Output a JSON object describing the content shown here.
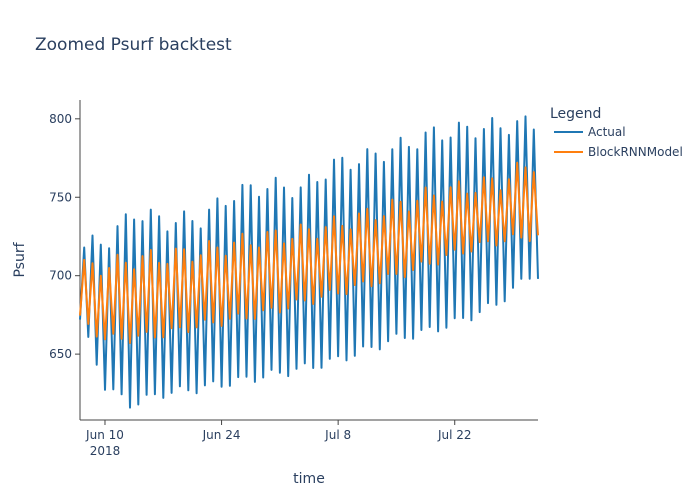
{
  "chart_data": {
    "type": "line",
    "title": "Zoomed Psurf backtest",
    "xlabel": "time",
    "ylabel": "Psurf",
    "x_range": [
      "2018-06-07",
      "2018-08-01"
    ],
    "ylim": [
      608,
      812
    ],
    "x_ticks": [
      {
        "date": "2018-06-10",
        "label": "Jun 10",
        "sublabel": "2018"
      },
      {
        "date": "2018-06-24",
        "label": "Jun 24",
        "sublabel": ""
      },
      {
        "date": "2018-07-08",
        "label": "Jul 8",
        "sublabel": ""
      },
      {
        "date": "2018-07-22",
        "label": "Jul 22",
        "sublabel": ""
      }
    ],
    "y_ticks": [
      650,
      700,
      750,
      800
    ],
    "grid": false,
    "legend": {
      "title": "Legend",
      "position": "right"
    },
    "sampling": "daily oscillation; one peak and one trough per day",
    "series": [
      {
        "name": "Actual",
        "color": "#1f77b4",
        "peaks": [
          [
            0,
            718
          ],
          [
            3,
            723
          ],
          [
            6,
            740
          ],
          [
            10,
            734
          ],
          [
            14,
            736
          ],
          [
            18,
            752
          ],
          [
            22,
            757
          ],
          [
            26,
            755
          ],
          [
            30,
            770
          ],
          [
            34,
            775
          ],
          [
            38,
            782
          ],
          [
            42,
            790
          ],
          [
            46,
            793
          ],
          [
            50,
            795
          ],
          [
            54,
            797
          ]
        ],
        "troughs": [
          [
            0,
            672
          ],
          [
            3,
            630
          ],
          [
            6,
            618
          ],
          [
            10,
            625
          ],
          [
            14,
            628
          ],
          [
            18,
            632
          ],
          [
            22,
            636
          ],
          [
            26,
            640
          ],
          [
            30,
            645
          ],
          [
            34,
            652
          ],
          [
            38,
            660
          ],
          [
            42,
            665
          ],
          [
            46,
            672
          ],
          [
            50,
            682
          ],
          [
            54,
            700
          ]
        ]
      },
      {
        "name": "BlockRNNModel",
        "color": "#ff7f0e",
        "peaks": [
          [
            0,
            705
          ],
          [
            3,
            706
          ],
          [
            6,
            710
          ],
          [
            10,
            712
          ],
          [
            14,
            715
          ],
          [
            18,
            720
          ],
          [
            22,
            724
          ],
          [
            26,
            727
          ],
          [
            30,
            732
          ],
          [
            34,
            738
          ],
          [
            38,
            745
          ],
          [
            42,
            752
          ],
          [
            46,
            756
          ],
          [
            50,
            760
          ],
          [
            54,
            772
          ]
        ],
        "troughs": [
          [
            0,
            672
          ],
          [
            3,
            660
          ],
          [
            6,
            660
          ],
          [
            10,
            663
          ],
          [
            14,
            668
          ],
          [
            18,
            672
          ],
          [
            22,
            676
          ],
          [
            26,
            682
          ],
          [
            30,
            688
          ],
          [
            34,
            694
          ],
          [
            38,
            700
          ],
          [
            42,
            708
          ],
          [
            46,
            716
          ],
          [
            50,
            722
          ],
          [
            54,
            725
          ]
        ]
      }
    ]
  }
}
